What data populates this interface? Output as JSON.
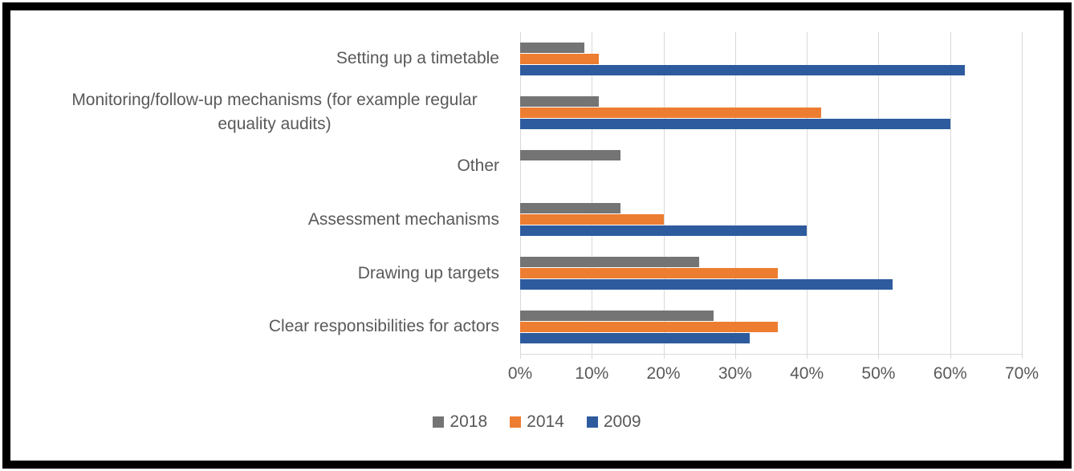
{
  "frame": {
    "border_color": "#000000",
    "background_color": "#ffffff"
  },
  "chart_data": {
    "type": "bar",
    "orientation": "horizontal",
    "title": "",
    "xlabel": "",
    "ylabel": "",
    "xlim": [
      0,
      70
    ],
    "grid": true,
    "gridline_color": "#d9d9d9",
    "text_color": "#595959",
    "categories": [
      "Setting up a timetable",
      "Monitoring/follow-up mechanisms (for example regular equality audits)",
      "Other",
      "Assessment mechanisms",
      "Drawing up targets",
      "Clear responsibilities for actors"
    ],
    "series": [
      {
        "name": "2018",
        "color": "#747474",
        "values": [
          9,
          11,
          14,
          14,
          25,
          27
        ]
      },
      {
        "name": "2014",
        "color": "#ed7d31",
        "values": [
          11,
          42,
          0,
          20,
          36,
          36
        ]
      },
      {
        "name": "2009",
        "color": "#2e5b9e",
        "values": [
          62,
          60,
          0,
          40,
          52,
          32
        ]
      }
    ],
    "x_ticks": [
      "0%",
      "10%",
      "20%",
      "30%",
      "40%",
      "50%",
      "60%",
      "70%"
    ],
    "legend_position": "bottom",
    "legend_entries": [
      "2018",
      "2014",
      "2009"
    ]
  }
}
